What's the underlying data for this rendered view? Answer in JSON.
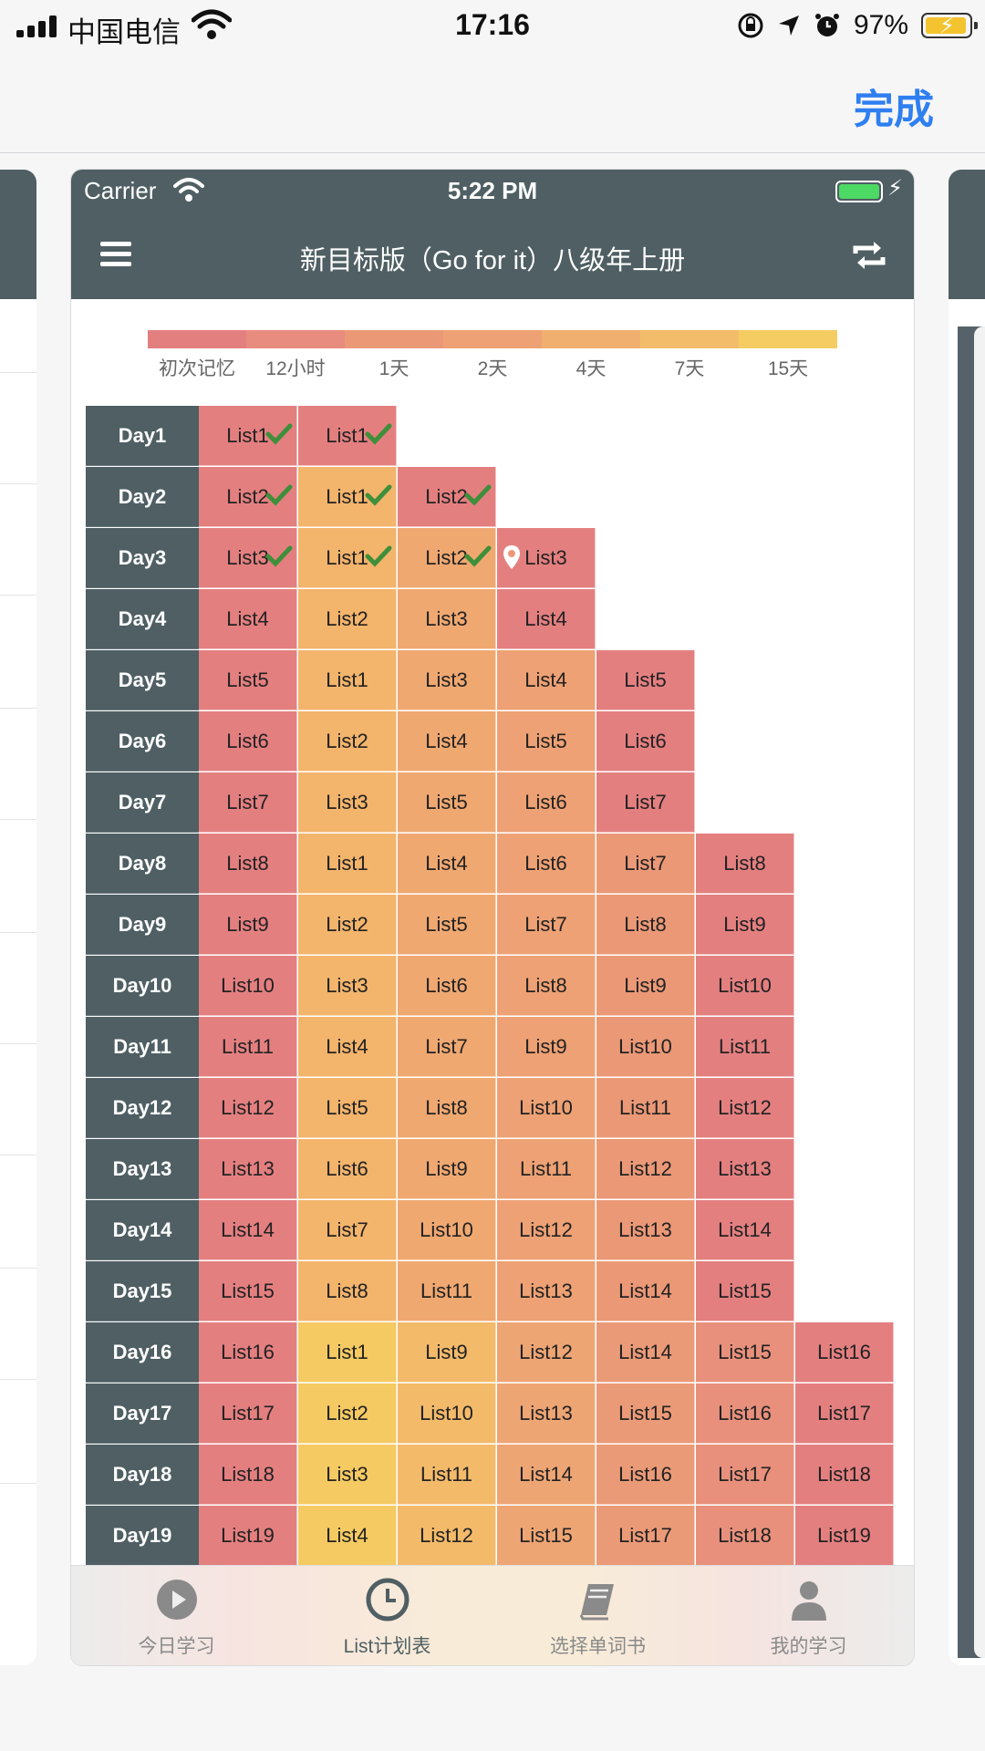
{
  "outer_status": {
    "carrier": "中国电信",
    "time": "17:16",
    "battery": "97%"
  },
  "top_bar": {
    "done_label": "完成"
  },
  "inner_status": {
    "carrier": "Carrier",
    "time": "5:22 PM"
  },
  "nav": {
    "title": "新目标版（Go for it）八级年上册"
  },
  "legend": {
    "items": [
      {
        "label": "初次记忆",
        "color": "#e47f80"
      },
      {
        "label": "12小时",
        "color": "#e78c7e"
      },
      {
        "label": "1天",
        "color": "#eb9877"
      },
      {
        "label": "2天",
        "color": "#eea174"
      },
      {
        "label": "4天",
        "color": "#f1af6f"
      },
      {
        "label": "7天",
        "color": "#f3bc6b"
      },
      {
        "label": "15天",
        "color": "#f5cc62"
      }
    ]
  },
  "table": {
    "rows": [
      {
        "day": "Day1",
        "cells": [
          "List1",
          "List1"
        ],
        "done": 2
      },
      {
        "day": "Day2",
        "cells": [
          "List2",
          "List1",
          "List2"
        ],
        "done": 3
      },
      {
        "day": "Day3",
        "cells": [
          "List3",
          "List1",
          "List2",
          "List3"
        ],
        "done": 3,
        "pin": 3
      },
      {
        "day": "Day4",
        "cells": [
          "List4",
          "List2",
          "List3",
          "List4"
        ]
      },
      {
        "day": "Day5",
        "cells": [
          "List5",
          "List1",
          "List3",
          "List4",
          "List5"
        ]
      },
      {
        "day": "Day6",
        "cells": [
          "List6",
          "List2",
          "List4",
          "List5",
          "List6"
        ]
      },
      {
        "day": "Day7",
        "cells": [
          "List7",
          "List3",
          "List5",
          "List6",
          "List7"
        ]
      },
      {
        "day": "Day8",
        "cells": [
          "List8",
          "List1",
          "List4",
          "List6",
          "List7",
          "List8"
        ]
      },
      {
        "day": "Day9",
        "cells": [
          "List9",
          "List2",
          "List5",
          "List7",
          "List8",
          "List9"
        ]
      },
      {
        "day": "Day10",
        "cells": [
          "List10",
          "List3",
          "List6",
          "List8",
          "List9",
          "List10"
        ]
      },
      {
        "day": "Day11",
        "cells": [
          "List11",
          "List4",
          "List7",
          "List9",
          "List10",
          "List11"
        ]
      },
      {
        "day": "Day12",
        "cells": [
          "List12",
          "List5",
          "List8",
          "List10",
          "List11",
          "List12"
        ]
      },
      {
        "day": "Day13",
        "cells": [
          "List13",
          "List6",
          "List9",
          "List11",
          "List12",
          "List13"
        ]
      },
      {
        "day": "Day14",
        "cells": [
          "List14",
          "List7",
          "List10",
          "List12",
          "List13",
          "List14"
        ]
      },
      {
        "day": "Day15",
        "cells": [
          "List15",
          "List8",
          "List11",
          "List13",
          "List14",
          "List15"
        ]
      },
      {
        "day": "Day16",
        "cells": [
          "List16",
          "List1",
          "List9",
          "List12",
          "List14",
          "List15",
          "List16"
        ]
      },
      {
        "day": "Day17",
        "cells": [
          "List17",
          "List2",
          "List10",
          "List13",
          "List15",
          "List16",
          "List17"
        ]
      },
      {
        "day": "Day18",
        "cells": [
          "List18",
          "List3",
          "List11",
          "List14",
          "List16",
          "List17",
          "List18"
        ]
      },
      {
        "day": "Day19",
        "cells": [
          "List19",
          "List4",
          "List12",
          "List15",
          "List17",
          "List18",
          "List19"
        ]
      }
    ]
  },
  "tabs": [
    {
      "label": "今日学习",
      "icon": "play-circle-icon",
      "active": false
    },
    {
      "label": "List计划表",
      "icon": "clock-icon",
      "active": true
    },
    {
      "label": "选择单词书",
      "icon": "book-icon",
      "active": false
    },
    {
      "label": "我的学习",
      "icon": "user-icon",
      "active": false
    }
  ]
}
